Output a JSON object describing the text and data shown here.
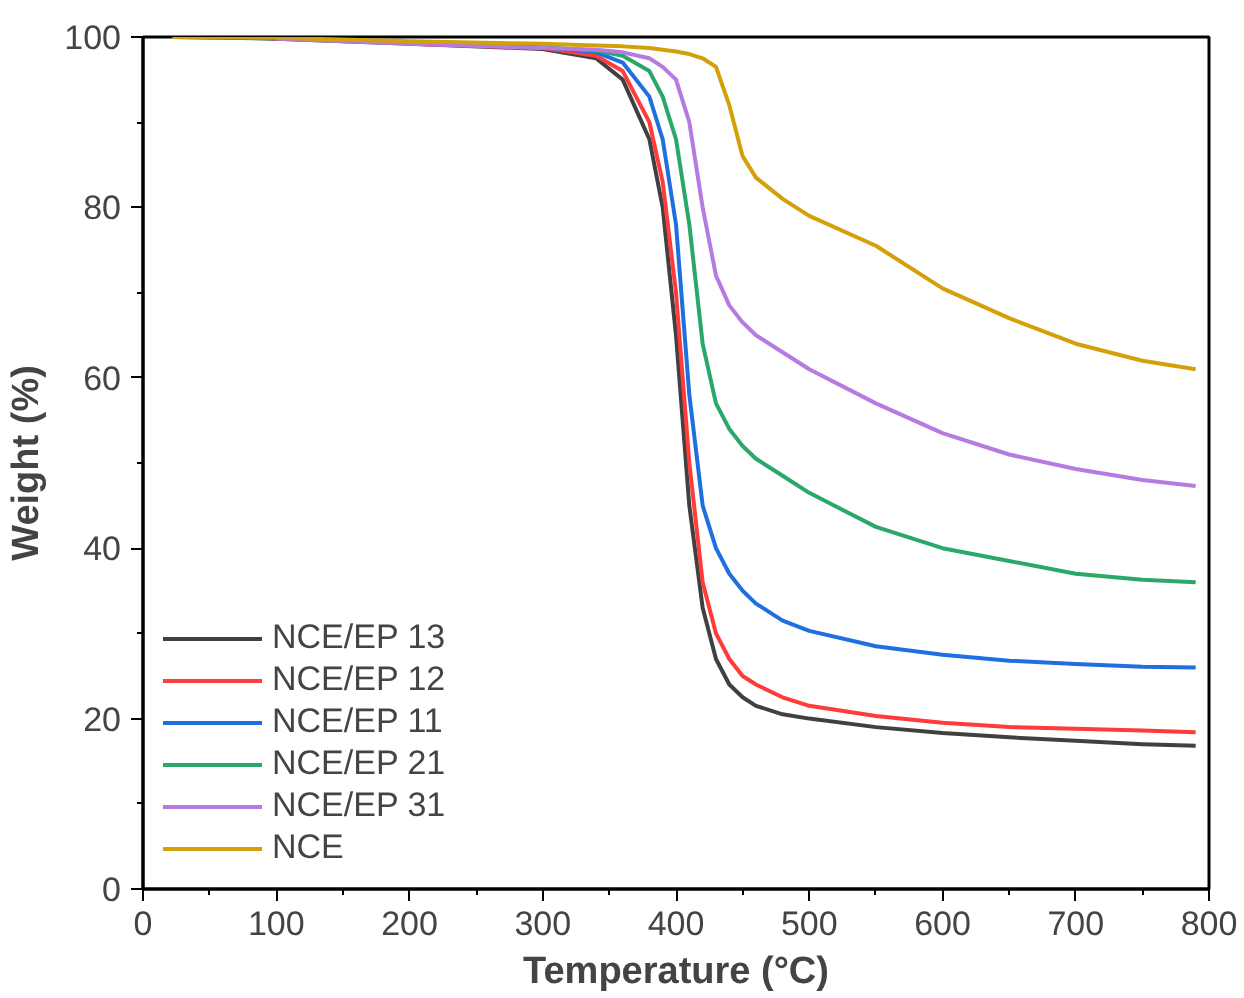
{
  "chart_data": {
    "type": "line",
    "xlabel": "Temperature (°C)",
    "ylabel": "Weight (%)",
    "x": [
      22,
      100,
      200,
      300,
      340,
      360,
      380,
      390,
      400,
      410,
      420,
      430,
      440,
      450,
      460,
      480,
      500,
      550,
      600,
      650,
      700,
      750,
      790
    ],
    "xlim": [
      0,
      800
    ],
    "ylim": [
      0,
      100
    ],
    "xticks": [
      0,
      100,
      200,
      300,
      400,
      500,
      600,
      700,
      800
    ],
    "yticks": [
      0,
      20,
      40,
      60,
      80,
      100
    ],
    "grid": false,
    "legend": "bottom left",
    "line_style": "solid",
    "marker": "none",
    "series": [
      {
        "name": "NCE/EP 13",
        "color": "#404040",
        "values": [
          100,
          99.8,
          99.2,
          98.6,
          97.5,
          95,
          88,
          80,
          65,
          45,
          33,
          27,
          24,
          22.5,
          21.5,
          20.5,
          20,
          19,
          18.3,
          17.8,
          17.4,
          17,
          16.8
        ]
      },
      {
        "name": "NCE/EP 12",
        "color": "#ff3b3b",
        "values": [
          null,
          null,
          99.2,
          98.7,
          97.8,
          96,
          90,
          83,
          70,
          50,
          36,
          30,
          27,
          25,
          24,
          22.5,
          21.5,
          20.3,
          19.5,
          19,
          18.8,
          18.6,
          18.4
        ]
      },
      {
        "name": "NCE/EP 11",
        "color": "#1f6fe0",
        "values": [
          null,
          null,
          99.3,
          98.8,
          98.2,
          97,
          93,
          88,
          78,
          58,
          45,
          40,
          37,
          35,
          33.5,
          31.5,
          30.3,
          28.5,
          27.5,
          26.8,
          26.4,
          26.1,
          26
        ]
      },
      {
        "name": "NCE/EP 21",
        "color": "#2aa86a",
        "values": [
          null,
          null,
          null,
          98.8,
          98.4,
          97.8,
          96,
          93,
          88,
          78,
          64,
          57,
          54,
          52,
          50.5,
          48.5,
          46.5,
          42.5,
          40,
          38.5,
          37,
          36.3,
          36
        ]
      },
      {
        "name": "NCE/EP 31",
        "color": "#b57be0",
        "values": [
          null,
          99.8,
          99.2,
          98.7,
          98.5,
          98.2,
          97.5,
          96.5,
          95,
          90,
          80,
          72,
          68.5,
          66.5,
          65,
          63,
          61,
          57,
          53.5,
          51,
          49.3,
          48,
          47.3
        ]
      },
      {
        "name": "NCE",
        "color": "#d4a00a",
        "values": [
          100,
          99.9,
          99.5,
          99.2,
          99,
          98.9,
          98.7,
          98.5,
          98.3,
          98,
          97.5,
          96.5,
          92,
          86,
          83.5,
          81,
          79,
          75.5,
          70.5,
          67,
          64,
          62,
          61
        ]
      }
    ]
  }
}
